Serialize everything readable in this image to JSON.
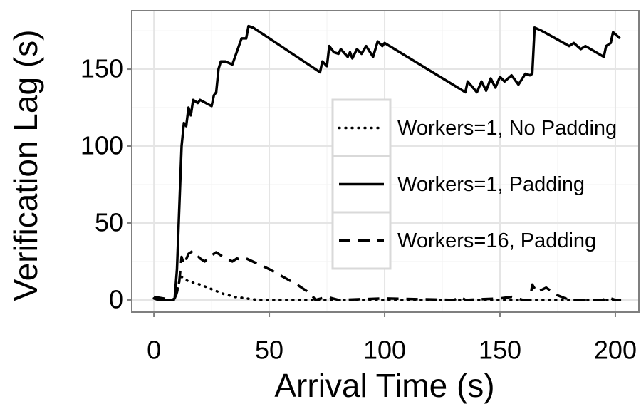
{
  "chart_data": {
    "type": "line",
    "x_label": "Arrival Time (s)",
    "y_label": "Verification Lag (s)",
    "xlim": [
      -9.6,
      210.2
    ],
    "ylim": [
      -7.9,
      188
    ],
    "xticks": [
      0,
      50,
      100,
      150,
      200
    ],
    "yticks": [
      0,
      50,
      100,
      150
    ],
    "grid": true,
    "legend_position": "center-right",
    "series": [
      {
        "name": "Workers=1, No Padding",
        "color": "#000000",
        "dash": "dotted",
        "x": [
          0,
          5,
          9,
          10,
          11,
          12,
          15,
          20,
          25,
          30,
          35,
          40,
          45,
          75,
          160,
          202
        ],
        "values": [
          1,
          0,
          0,
          5,
          12,
          15,
          12,
          10,
          7,
          4,
          2,
          1,
          0,
          0,
          0,
          0
        ]
      },
      {
        "name": "Workers=1, Padding",
        "color": "#000000",
        "dash": "solid",
        "x": [
          0,
          2,
          5,
          8,
          9,
          10,
          11,
          12,
          13,
          14,
          15,
          16,
          17,
          19,
          20,
          25,
          26,
          27,
          28,
          29,
          31,
          34,
          38,
          40,
          41,
          43,
          70,
          72,
          73,
          75,
          76,
          78,
          80,
          81,
          84,
          85,
          86,
          88,
          90,
          92,
          95,
          97,
          99,
          100,
          135,
          136,
          140,
          142,
          144,
          146,
          148,
          150,
          152,
          155,
          158,
          161,
          163,
          164,
          165,
          168,
          180,
          182,
          185,
          187,
          195,
          196,
          198,
          199,
          202
        ],
        "values": [
          1,
          0,
          0,
          0,
          1,
          20,
          60,
          100,
          115,
          113,
          125,
          120,
          130,
          128,
          130,
          126,
          133,
          135,
          150,
          155,
          155,
          153,
          170,
          170,
          178,
          177,
          150,
          148,
          155,
          152,
          165,
          161,
          160,
          163,
          158,
          161,
          157,
          163,
          160,
          165,
          158,
          168,
          165,
          167,
          135,
          142,
          135,
          142,
          136,
          144,
          138,
          145,
          142,
          146,
          140,
          147,
          146,
          147,
          177,
          175,
          165,
          167,
          163,
          165,
          158,
          165,
          167,
          174,
          170
        ]
      },
      {
        "name": "Workers=16, Padding",
        "color": "#000000",
        "dash": "dashed",
        "x": [
          0,
          8,
          9,
          10,
          11,
          12,
          13,
          15,
          17,
          20,
          22,
          25,
          27,
          30,
          34,
          36,
          38,
          40,
          50,
          62,
          68,
          70,
          75,
          80,
          100,
          130,
          133,
          135,
          150,
          155,
          160,
          163,
          164,
          166,
          170,
          175,
          180,
          195,
          196,
          200,
          202
        ],
        "values": [
          2,
          0,
          1,
          5,
          12,
          28,
          23,
          30,
          32,
          27,
          25,
          29,
          31,
          28,
          25,
          27,
          26,
          27,
          20,
          10,
          4,
          0,
          2,
          0,
          1,
          0,
          2,
          0,
          1,
          2,
          0,
          0,
          10,
          5,
          8,
          3,
          0,
          0,
          2,
          0,
          0
        ]
      }
    ]
  }
}
